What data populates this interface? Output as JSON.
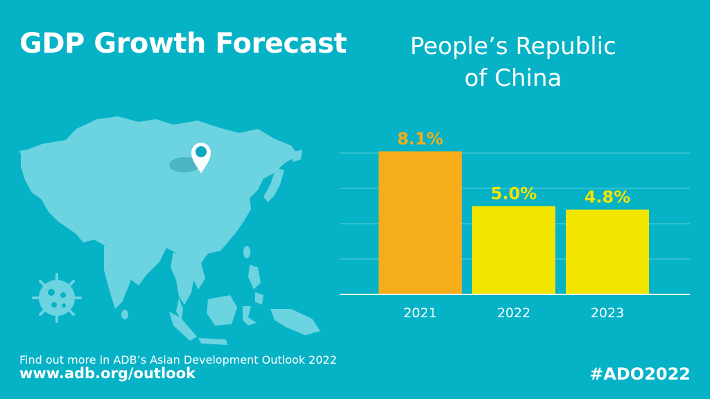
{
  "header": {
    "title": "GDP Growth Forecast",
    "country_line1": "People’s Republic",
    "country_line2": "of China"
  },
  "chart_data": {
    "type": "bar",
    "categories": [
      "2021",
      "2022",
      "2023"
    ],
    "values": [
      8.1,
      5.0,
      4.8
    ],
    "value_labels": [
      "8.1%",
      "5.0%",
      "4.8%"
    ],
    "ylim": [
      0,
      10
    ],
    "grid": true,
    "colors": {
      "highlight": "#f6ad1a",
      "default": "#f2e500",
      "gridline": "#5fd0dc",
      "axis": "#e6f7f9"
    },
    "label_colors": [
      "#f6ad1a",
      "#f2e500",
      "#f2e500"
    ]
  },
  "map": {
    "icon": "location-pin-icon",
    "land_color": "#6cd3e0",
    "pin_color": "#ffffff",
    "pin_dot_color": "#0aa9be"
  },
  "virus_icon": "virus-icon",
  "footer": {
    "text": "Find out more in ADB’s Asian Development Outlook 2022",
    "link": "www.adb.org/outlook",
    "hashtag": "#ADO2022"
  }
}
